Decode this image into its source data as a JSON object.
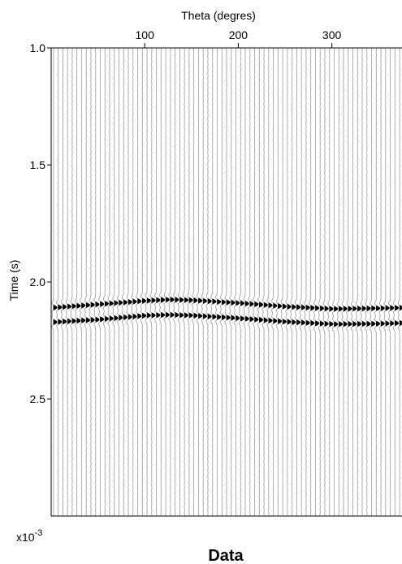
{
  "chart_data": {
    "type": "seismic-wiggle",
    "title": "Data",
    "xlabel": "Theta (degres)",
    "ylabel": "Time (s)",
    "xlim": [
      0,
      375
    ],
    "ylim": [
      1.0,
      3.0
    ],
    "x_ticks": [
      "100",
      "200",
      "300"
    ],
    "x_tick_values": [
      100,
      200,
      300
    ],
    "y_ticks": [
      "1.0",
      "1.5",
      "2.0",
      "2.5"
    ],
    "y_tick_values": [
      1.0,
      1.5,
      2.0,
      2.5
    ],
    "y_axis_inverted": true,
    "x_axis_position": "top",
    "scale_note_base": "x10",
    "scale_note_exp": "-3",
    "trace_spacing_deg": 5,
    "events": [
      {
        "theta": [
          0,
          50,
          100,
          125,
          150,
          200,
          250,
          300,
          350,
          375
        ],
        "time": [
          2.11,
          2.095,
          2.08,
          2.075,
          2.078,
          2.09,
          2.105,
          2.115,
          2.112,
          2.11
        ]
      },
      {
        "theta": [
          0,
          50,
          100,
          125,
          150,
          200,
          250,
          300,
          350,
          375
        ],
        "time": [
          2.172,
          2.16,
          2.143,
          2.14,
          2.143,
          2.155,
          2.17,
          2.18,
          2.178,
          2.175
        ]
      }
    ]
  }
}
